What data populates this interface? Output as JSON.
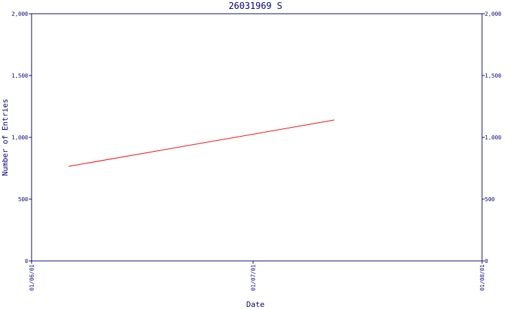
{
  "chart_data": {
    "type": "line",
    "title": "26031969 S",
    "xlabel": "Date",
    "ylabel": "Number of Entries",
    "x_ticks": [
      "01/06/01",
      "01/07/01",
      "01/08/01"
    ],
    "y_ticks": [
      "0",
      "500",
      "1,000",
      "1,500",
      "2,000"
    ],
    "ylim": [
      0,
      2000
    ],
    "xlim": [
      "01/06/01",
      "01/08/01"
    ],
    "grid": false,
    "series": [
      {
        "color": "#ff0000",
        "points": [
          {
            "x": "01/06/06",
            "y": 765
          },
          {
            "x": "01/07/12",
            "y": 1140
          }
        ]
      }
    ]
  },
  "colors": {
    "axis": "#000080",
    "line": "#ff0000",
    "background": "#ffffff"
  }
}
